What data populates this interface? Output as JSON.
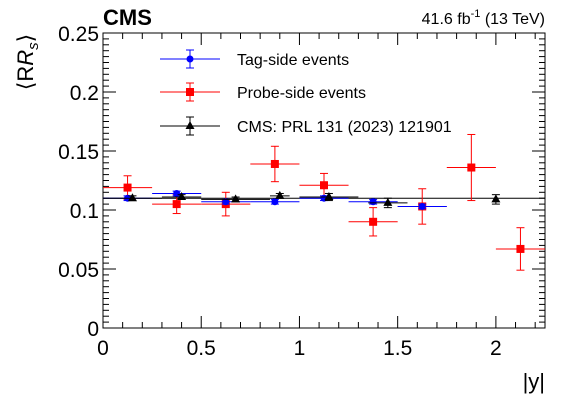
{
  "header": {
    "experiment": "CMS",
    "lumi_value": "41.6 fb",
    "lumi_exp": "-1",
    "lumi_energy": " (13 TeV)"
  },
  "chart_data": {
    "type": "scatter",
    "xlabel": "|y|",
    "ylabel": "⟨R",
    "ylabel_sub": "s",
    "ylabel_close": "⟩",
    "xlim": [
      0,
      2.25
    ],
    "ylim": [
      0,
      0.25
    ],
    "x_ticks": [
      0,
      0.5,
      1,
      1.5,
      2
    ],
    "x_tick_labels": [
      "0",
      "0.5",
      "1",
      "1.5",
      "2"
    ],
    "y_ticks": [
      0,
      0.05,
      0.1,
      0.15,
      0.2,
      0.25
    ],
    "y_tick_labels": [
      "0",
      "0.05",
      "0.1",
      "0.15",
      "0.2",
      "0.25"
    ],
    "reference_line": 0.11,
    "legend_position": "top-left",
    "series": [
      {
        "name": "Tag-side events",
        "color": "#0000ff",
        "marker": "circle",
        "points": [
          {
            "x": 0.125,
            "y": 0.11,
            "xerr": 0.125,
            "yerr": 0.002
          },
          {
            "x": 0.375,
            "y": 0.114,
            "xerr": 0.125,
            "yerr": 0.002
          },
          {
            "x": 0.625,
            "y": 0.107,
            "xerr": 0.125,
            "yerr": 0.002
          },
          {
            "x": 0.875,
            "y": 0.107,
            "xerr": 0.125,
            "yerr": 0.002
          },
          {
            "x": 1.125,
            "y": 0.11,
            "xerr": 0.125,
            "yerr": 0.002
          },
          {
            "x": 1.375,
            "y": 0.107,
            "xerr": 0.125,
            "yerr": 0.002
          },
          {
            "x": 1.625,
            "y": 0.103,
            "xerr": 0.125,
            "yerr": 0.002
          }
        ]
      },
      {
        "name": "Probe-side events",
        "color": "#ff0000",
        "marker": "square",
        "points": [
          {
            "x": 0.125,
            "y": 0.119,
            "xerr": 0.125,
            "yerr": 0.01
          },
          {
            "x": 0.375,
            "y": 0.105,
            "xerr": 0.125,
            "yerr": 0.008
          },
          {
            "x": 0.625,
            "y": 0.105,
            "xerr": 0.125,
            "yerr": 0.01
          },
          {
            "x": 0.875,
            "y": 0.139,
            "xerr": 0.125,
            "yerr": 0.015
          },
          {
            "x": 1.125,
            "y": 0.121,
            "xerr": 0.125,
            "yerr": 0.01
          },
          {
            "x": 1.375,
            "y": 0.09,
            "xerr": 0.125,
            "yerr": 0.012
          },
          {
            "x": 1.625,
            "y": 0.103,
            "xerr": 0.125,
            "yerr": 0.015
          },
          {
            "x": 1.875,
            "y": 0.136,
            "xerr": 0.125,
            "yerr": 0.028
          },
          {
            "x": 2.125,
            "y": 0.067,
            "xerr": 0.125,
            "yerr": 0.018
          }
        ]
      },
      {
        "name": "CMS: PRL 131 (2023) 121901",
        "color": "#000000",
        "marker": "triangle",
        "points": [
          {
            "x": 0.15,
            "y": 0.11,
            "xerr": 0.15,
            "yerr": 0.002
          },
          {
            "x": 0.4,
            "y": 0.111,
            "xerr": 0.1,
            "yerr": 0.002
          },
          {
            "x": 0.675,
            "y": 0.109,
            "xerr": 0.175,
            "yerr": 0.002
          },
          {
            "x": 0.9,
            "y": 0.112,
            "xerr": 0.05,
            "yerr": 0.002
          },
          {
            "x": 1.15,
            "y": 0.111,
            "xerr": 0.15,
            "yerr": 0.003
          },
          {
            "x": 1.45,
            "y": 0.106,
            "xerr": 0.1,
            "yerr": 0.004
          },
          {
            "x": 2.0,
            "y": 0.109,
            "xerr": 0.0,
            "yerr": 0.004
          }
        ]
      }
    ]
  }
}
